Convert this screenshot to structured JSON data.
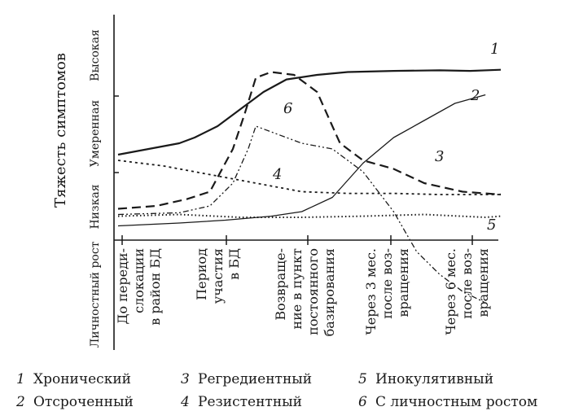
{
  "chart_data": {
    "type": "line",
    "ylabel": "Тяжесть симптомов",
    "y_levels": [
      "Низкая",
      "Умеренная",
      "Высокая"
    ],
    "lower_label": "Личностный рост",
    "x_categories": [
      [
        "До переди-",
        "слокации",
        "в район БД"
      ],
      [
        "Период",
        "участия",
        "в БД"
      ],
      [
        "Возвраще-",
        "ние в пункт",
        "постоянного",
        "базирования"
      ],
      [
        "Через 3 мес.",
        "после воз-",
        "вращения"
      ],
      [
        "Через 6 мес.",
        "после воз-",
        "вращения"
      ]
    ],
    "x_scale": "ordinal time (0 = before deployment, 5 = 6 months after return)",
    "y_scale": "severity 0–3 (1 = Низкая, 2 = Умеренная, 3 = Высокая); values below 0 = personal growth",
    "ylim": [
      -1.7,
      3.2
    ],
    "series": [
      {
        "name": "Хронический",
        "label": "1",
        "x": [
          0,
          0.4,
          0.8,
          1.0,
          1.3,
          1.6,
          1.9,
          2.2,
          2.6,
          3.0,
          3.6,
          4.2,
          4.6,
          5.0
        ],
        "y": [
          1.5,
          1.6,
          1.7,
          1.8,
          2.0,
          2.3,
          2.6,
          2.82,
          2.9,
          2.95,
          2.97,
          2.98,
          2.97,
          2.99
        ]
      },
      {
        "name": "Отсроченный",
        "label": "2",
        "x": [
          0,
          0.8,
          1.4,
          2.0,
          2.4,
          2.8,
          3.2,
          3.6,
          4.0,
          4.4,
          4.8
        ],
        "y": [
          0.25,
          0.3,
          0.35,
          0.42,
          0.5,
          0.75,
          1.35,
          1.8,
          2.1,
          2.4,
          2.55
        ]
      },
      {
        "name": "Регредиентный",
        "label": "3",
        "x": [
          0,
          0.5,
          0.9,
          1.2,
          1.5,
          1.65,
          1.8,
          2.0,
          2.3,
          2.6,
          2.9,
          3.2,
          3.6,
          4.0,
          4.5,
          5.0
        ],
        "y": [
          0.55,
          0.6,
          0.72,
          0.85,
          1.6,
          2.2,
          2.85,
          2.95,
          2.9,
          2.6,
          1.7,
          1.4,
          1.25,
          1.0,
          0.85,
          0.8
        ]
      },
      {
        "name": "Резистентный",
        "label": "4",
        "x": [
          0,
          0.6,
          1.2,
          1.8,
          2.4,
          3.0,
          3.6,
          4.2,
          5.0
        ],
        "y": [
          1.4,
          1.3,
          1.15,
          1.0,
          0.85,
          0.82,
          0.82,
          0.8,
          0.8
        ]
      },
      {
        "name": "Инокулятивный",
        "label": "5",
        "x": [
          0,
          0.8,
          1.6,
          2.4,
          3.2,
          4.0,
          4.8,
          5.0
        ],
        "y": [
          0.42,
          0.45,
          0.4,
          0.4,
          0.42,
          0.45,
          0.4,
          0.42
        ]
      },
      {
        "name": "С личностным ростом",
        "label": "6",
        "x": [
          0,
          0.8,
          1.2,
          1.5,
          1.7,
          1.8,
          2.0,
          2.4,
          2.8,
          3.2,
          3.6,
          3.9,
          4.2,
          4.5,
          4.8
        ],
        "y": [
          0.45,
          0.48,
          0.6,
          1.0,
          1.6,
          2.0,
          1.9,
          1.7,
          1.6,
          1.2,
          0.5,
          -0.2,
          -0.6,
          -0.9,
          -1.1
        ]
      }
    ],
    "legend": [
      {
        "num": "1",
        "text": "Хронический"
      },
      {
        "num": "3",
        "text": "Регредиентный"
      },
      {
        "num": "5",
        "text": "Инокулятивный"
      },
      {
        "num": "2",
        "text": "Отсроченный"
      },
      {
        "num": "4",
        "text": "Резистентный"
      },
      {
        "num": "6",
        "text": "С личностным ростом"
      }
    ]
  }
}
